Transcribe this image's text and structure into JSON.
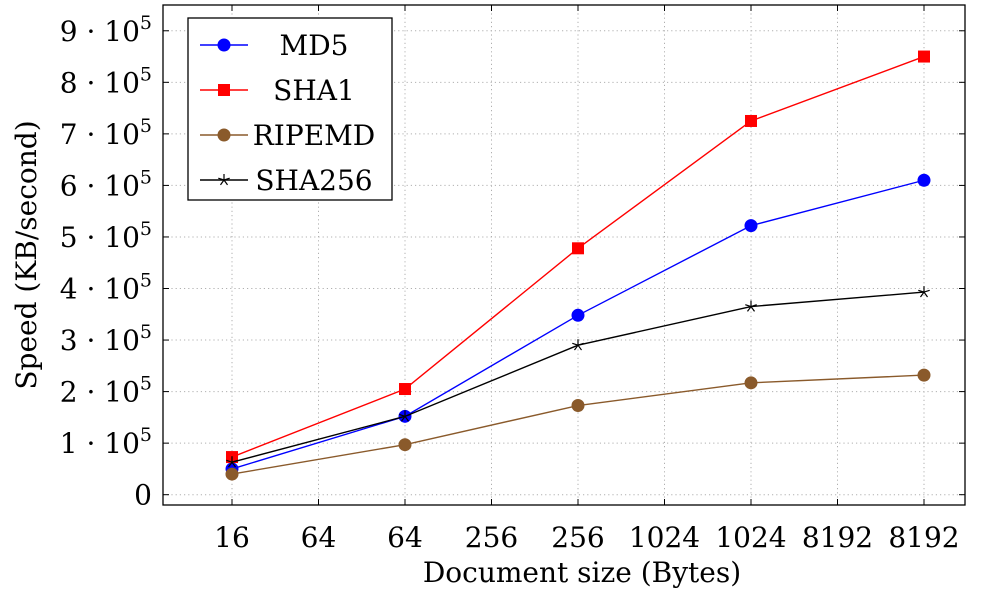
{
  "chart_data": {
    "type": "line",
    "title": "",
    "xlabel": "Document size (Bytes)",
    "ylabel": "Speed (KB/second)",
    "categories": [
      "16",
      "64",
      "64",
      "256",
      "256",
      "1024",
      "1024",
      "8192",
      "8192"
    ],
    "ylim": [
      -20000,
      950000
    ],
    "yticks": [
      {
        "value": 0,
        "label": "0"
      },
      {
        "value": 100000,
        "label": "1 · 10",
        "exp": "5"
      },
      {
        "value": 200000,
        "label": "2 · 10",
        "exp": "5"
      },
      {
        "value": 300000,
        "label": "3 · 10",
        "exp": "5"
      },
      {
        "value": 400000,
        "label": "4 · 10",
        "exp": "5"
      },
      {
        "value": 500000,
        "label": "5 · 10",
        "exp": "5"
      },
      {
        "value": 600000,
        "label": "6 · 10",
        "exp": "5"
      },
      {
        "value": 700000,
        "label": "7 · 10",
        "exp": "5"
      },
      {
        "value": 800000,
        "label": "8 · 10",
        "exp": "5"
      },
      {
        "value": 900000,
        "label": "9 · 10",
        "exp": "5"
      }
    ],
    "grid": true,
    "legend_position": "top-left",
    "series": [
      {
        "name": "MD5",
        "color": "#0000ff",
        "marker": "circle",
        "points": [
          {
            "x": 0,
            "y": 50000
          },
          {
            "x": 2,
            "y": 152000
          },
          {
            "x": 4,
            "y": 348000
          },
          {
            "x": 6,
            "y": 522000
          },
          {
            "x": 8,
            "y": 610000
          }
        ]
      },
      {
        "name": "SHA1",
        "color": "#ff0000",
        "marker": "square",
        "points": [
          {
            "x": 0,
            "y": 73000
          },
          {
            "x": 2,
            "y": 205000
          },
          {
            "x": 4,
            "y": 478000
          },
          {
            "x": 6,
            "y": 725000
          },
          {
            "x": 8,
            "y": 850000
          }
        ]
      },
      {
        "name": "RIPEMD",
        "color": "#8a5a2b",
        "marker": "circle",
        "points": [
          {
            "x": 0,
            "y": 40000
          },
          {
            "x": 2,
            "y": 97000
          },
          {
            "x": 4,
            "y": 173000
          },
          {
            "x": 6,
            "y": 217000
          },
          {
            "x": 8,
            "y": 232000
          }
        ]
      },
      {
        "name": "SHA256",
        "color": "#000000",
        "marker": "star",
        "points": [
          {
            "x": 0,
            "y": 63000
          },
          {
            "x": 2,
            "y": 152000
          },
          {
            "x": 4,
            "y": 290000
          },
          {
            "x": 6,
            "y": 365000
          },
          {
            "x": 8,
            "y": 393000
          }
        ]
      }
    ]
  }
}
